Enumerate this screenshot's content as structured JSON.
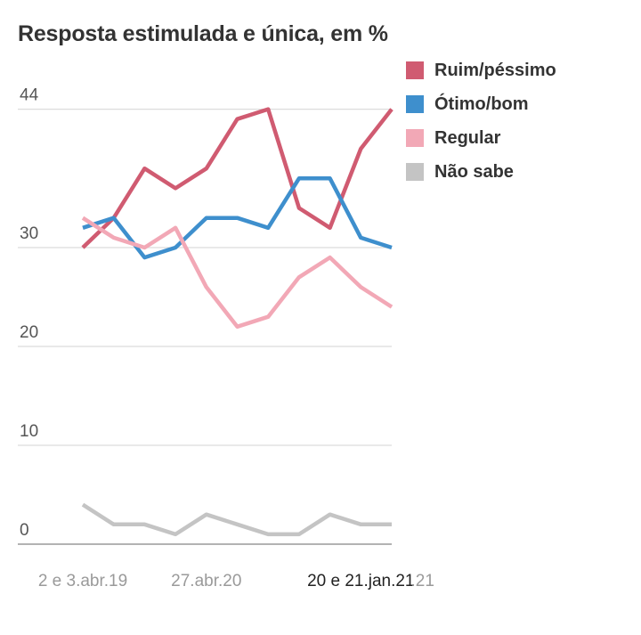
{
  "chart_data": {
    "type": "line",
    "title": "Resposta estimulada e única, em %",
    "xlabel": "",
    "ylabel": "",
    "ylim": [
      0,
      44
    ],
    "yticks": [
      0,
      10,
      20,
      30,
      44
    ],
    "x_tick_labels": [
      {
        "label": "2 e 3.abr.19",
        "index": 0,
        "highlight": false
      },
      {
        "label": "27.abr.20",
        "index": 4,
        "highlight": false
      },
      {
        "label": "20 e 21.jan.21",
        "index": 9,
        "highlight": true
      },
      {
        "label": ".21",
        "index": 11,
        "highlight": false
      }
    ],
    "grid": true,
    "legend_position": "top-right",
    "series": [
      {
        "name": "Ruim/péssimo",
        "color": "#d05b71",
        "values": [
          30,
          33,
          38,
          36,
          38,
          43,
          44,
          34,
          32,
          40,
          44
        ]
      },
      {
        "name": "Ótimo/bom",
        "color": "#3e8fcd",
        "values": [
          32,
          33,
          29,
          30,
          33,
          33,
          32,
          37,
          37,
          31,
          30
        ]
      },
      {
        "name": "Regular",
        "color": "#f2a8b6",
        "values": [
          33,
          31,
          30,
          32,
          26,
          22,
          23,
          27,
          29,
          26,
          24
        ]
      },
      {
        "name": "Não sabe",
        "color": "#c4c4c4",
        "values": [
          4,
          2,
          2,
          1,
          3,
          2,
          1,
          1,
          3,
          2,
          2
        ]
      }
    ]
  },
  "colors": {
    "grid": "#dcdcdc",
    "baseline": "#9a9a9a",
    "tick_text": "#555555",
    "x_tick_text": "#9a9a9a",
    "x_tick_highlight": "#222222"
  }
}
